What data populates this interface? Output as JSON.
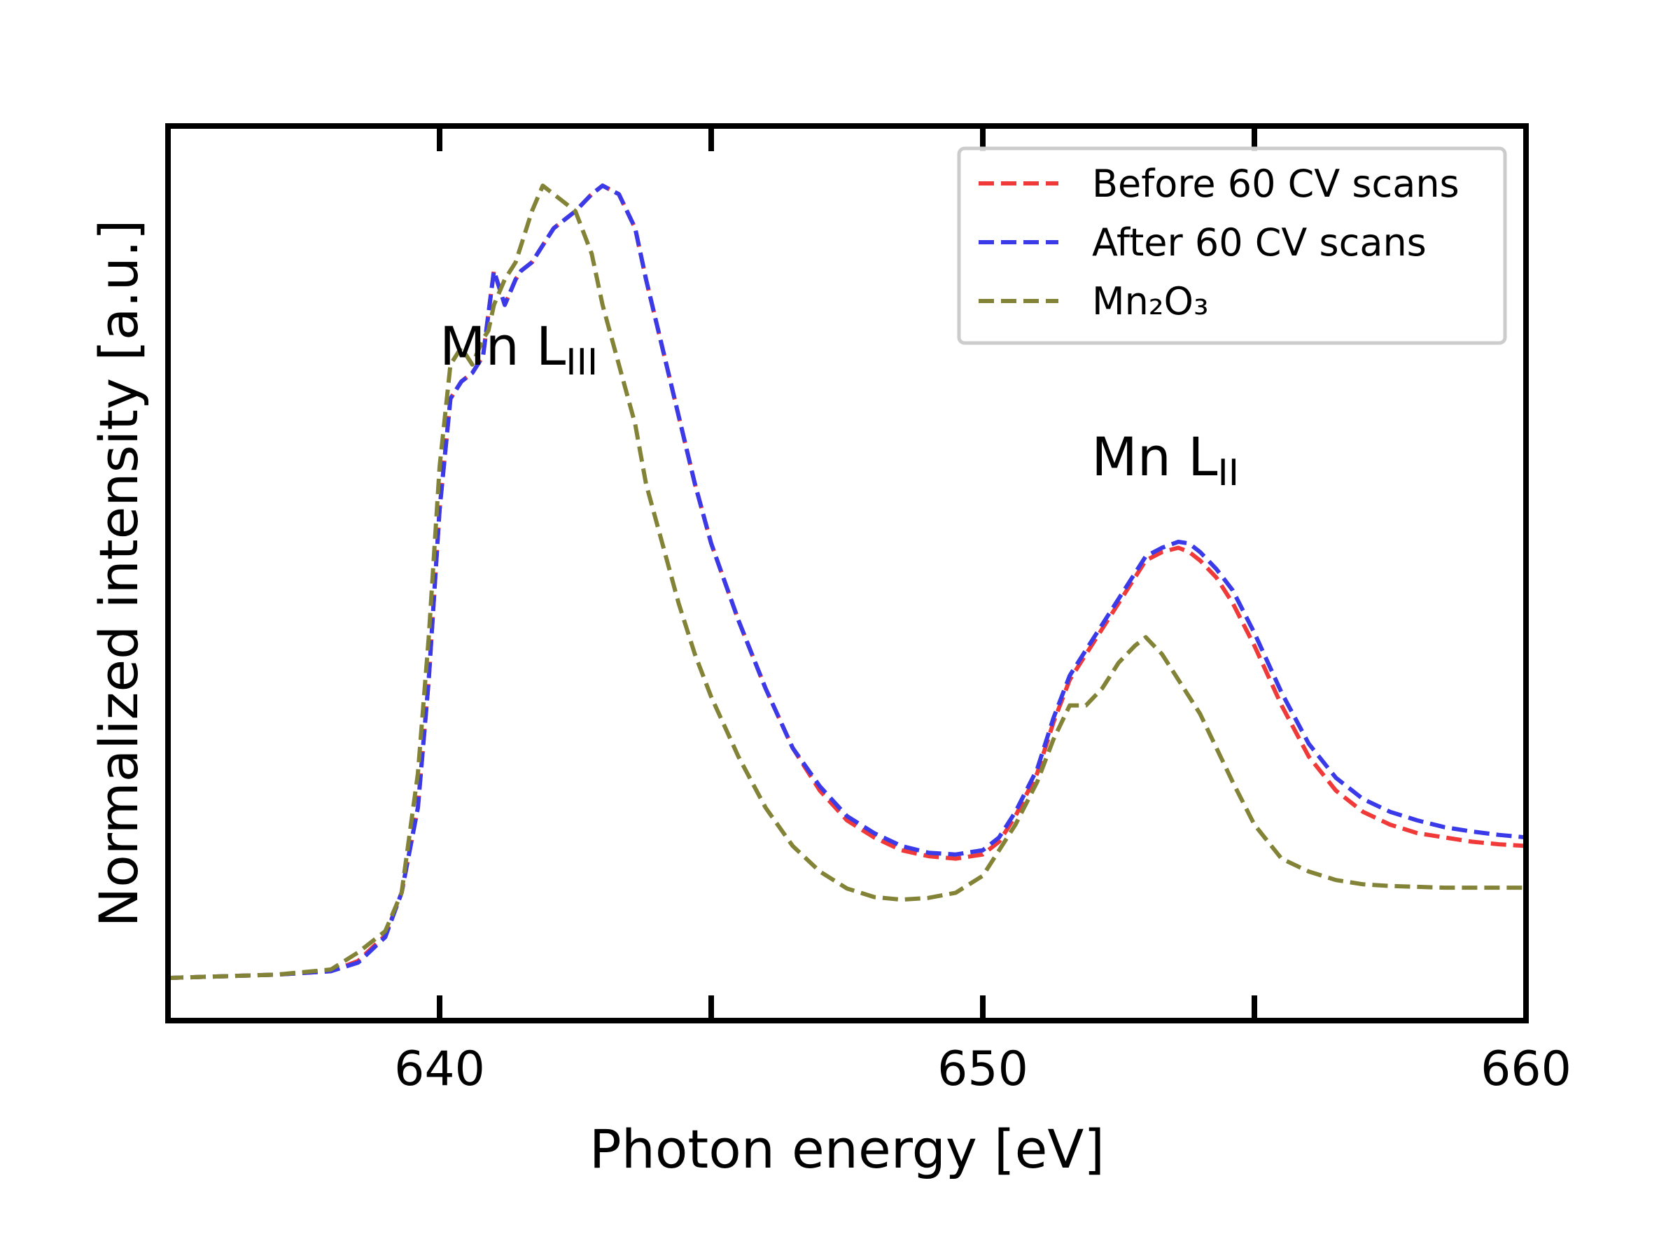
{
  "chart_data": {
    "type": "line",
    "title": "",
    "xlabel": "Photon energy [eV]",
    "ylabel": "Normalized intensity [a.u.]",
    "xlim": [
      635,
      660
    ],
    "ylim": [
      -0.05,
      1.0
    ],
    "xticks": [
      640,
      650,
      660
    ],
    "xtick_labels": [
      "640",
      "650",
      "660"
    ],
    "minor_xticks": [
      645,
      655
    ],
    "grid": false,
    "legend_position": "top-right",
    "annotations": [
      {
        "name": "mn-l3",
        "base": "Mn L",
        "sub": "III",
        "x": 640.0,
        "y": 0.72
      },
      {
        "name": "mn-l2",
        "base": "Mn L",
        "sub": "II",
        "x": 652.0,
        "y": 0.59
      }
    ],
    "series": [
      {
        "name": "Before 60 CV scans",
        "color": "#f03a3a",
        "dash": "dashed",
        "x": [
          635,
          636,
          637,
          638,
          638.5,
          639,
          639.3,
          639.6,
          639.8,
          640.0,
          640.2,
          640.4,
          640.6,
          640.8,
          640.9,
          641.0,
          641.2,
          641.4,
          641.5,
          641.7,
          641.9,
          642.1,
          642.3,
          642.5,
          642.8,
          643.0,
          643.3,
          643.6,
          643.8,
          644.1,
          644.4,
          644.7,
          645.0,
          645.5,
          646.0,
          646.5,
          647.0,
          647.5,
          648.0,
          648.5,
          649.0,
          649.5,
          650.0,
          650.3,
          650.6,
          651.0,
          651.3,
          651.6,
          651.9,
          652.2,
          652.5,
          652.8,
          653.0,
          653.3,
          653.6,
          653.8,
          654.0,
          654.3,
          654.6,
          655.0,
          655.5,
          656.0,
          656.5,
          657.0,
          657.5,
          658.0,
          658.5,
          659.0,
          659.5,
          660.0
        ],
        "y": [
          0.0,
          0.002,
          0.004,
          0.008,
          0.02,
          0.05,
          0.1,
          0.2,
          0.35,
          0.55,
          0.68,
          0.7,
          0.71,
          0.73,
          0.78,
          0.83,
          0.79,
          0.82,
          0.83,
          0.84,
          0.86,
          0.88,
          0.89,
          0.9,
          0.92,
          0.93,
          0.92,
          0.88,
          0.82,
          0.74,
          0.66,
          0.58,
          0.51,
          0.42,
          0.34,
          0.27,
          0.22,
          0.185,
          0.165,
          0.15,
          0.143,
          0.14,
          0.145,
          0.16,
          0.19,
          0.24,
          0.3,
          0.35,
          0.38,
          0.41,
          0.44,
          0.47,
          0.49,
          0.5,
          0.505,
          0.5,
          0.49,
          0.47,
          0.44,
          0.39,
          0.32,
          0.26,
          0.22,
          0.195,
          0.18,
          0.17,
          0.165,
          0.16,
          0.157,
          0.155
        ]
      },
      {
        "name": "After 60 CV scans",
        "color": "#3a3ae8",
        "dash": "dashed",
        "x": [
          635,
          636,
          637,
          638,
          638.5,
          639,
          639.3,
          639.6,
          639.8,
          640.0,
          640.2,
          640.4,
          640.6,
          640.8,
          640.9,
          641.0,
          641.2,
          641.4,
          641.5,
          641.7,
          641.9,
          642.1,
          642.3,
          642.5,
          642.8,
          643.0,
          643.3,
          643.6,
          643.8,
          644.1,
          644.4,
          644.7,
          645.0,
          645.5,
          646.0,
          646.5,
          647.0,
          647.5,
          648.0,
          648.5,
          649.0,
          649.5,
          650.0,
          650.3,
          650.6,
          651.0,
          651.3,
          651.6,
          651.9,
          652.2,
          652.5,
          652.8,
          653.0,
          653.3,
          653.6,
          653.8,
          654.0,
          654.3,
          654.6,
          655.0,
          655.5,
          656.0,
          656.5,
          657.0,
          657.5,
          658.0,
          658.5,
          659.0,
          659.5,
          660.0
        ],
        "y": [
          0.0,
          0.002,
          0.004,
          0.008,
          0.018,
          0.048,
          0.1,
          0.2,
          0.35,
          0.55,
          0.68,
          0.7,
          0.71,
          0.73,
          0.78,
          0.83,
          0.79,
          0.82,
          0.83,
          0.84,
          0.86,
          0.88,
          0.89,
          0.9,
          0.92,
          0.93,
          0.92,
          0.88,
          0.82,
          0.74,
          0.66,
          0.58,
          0.51,
          0.42,
          0.34,
          0.27,
          0.225,
          0.19,
          0.17,
          0.155,
          0.147,
          0.145,
          0.15,
          0.165,
          0.195,
          0.245,
          0.305,
          0.355,
          0.385,
          0.415,
          0.445,
          0.475,
          0.495,
          0.505,
          0.512,
          0.51,
          0.5,
          0.48,
          0.455,
          0.405,
          0.335,
          0.275,
          0.235,
          0.21,
          0.195,
          0.185,
          0.177,
          0.172,
          0.168,
          0.165
        ]
      },
      {
        "name": "Mn₂O₃",
        "color": "#838337",
        "dash": "dashed",
        "x": [
          635,
          636,
          637,
          638,
          638.5,
          639,
          639.3,
          639.6,
          639.8,
          640.0,
          640.2,
          640.4,
          640.6,
          640.8,
          640.9,
          641.0,
          641.2,
          641.4,
          641.5,
          641.7,
          641.9,
          642.1,
          642.3,
          642.5,
          642.8,
          643.0,
          643.3,
          643.6,
          643.8,
          644.1,
          644.4,
          644.7,
          645.0,
          645.5,
          646.0,
          646.5,
          647.0,
          647.5,
          648.0,
          648.5,
          649.0,
          649.5,
          650.0,
          650.3,
          650.6,
          651.0,
          651.3,
          651.6,
          651.9,
          652.2,
          652.5,
          652.8,
          653.0,
          653.3,
          653.6,
          653.8,
          654.0,
          654.3,
          654.6,
          655.0,
          655.5,
          656.0,
          656.5,
          657.0,
          657.5,
          658.0,
          658.5,
          659.0,
          659.5,
          660.0
        ],
        "y": [
          0.0,
          0.002,
          0.004,
          0.01,
          0.03,
          0.055,
          0.1,
          0.24,
          0.4,
          0.6,
          0.72,
          0.74,
          0.72,
          0.75,
          0.76,
          0.79,
          0.82,
          0.84,
          0.86,
          0.9,
          0.93,
          0.92,
          0.91,
          0.9,
          0.85,
          0.79,
          0.72,
          0.65,
          0.58,
          0.51,
          0.44,
          0.38,
          0.33,
          0.26,
          0.2,
          0.155,
          0.125,
          0.105,
          0.095,
          0.092,
          0.094,
          0.1,
          0.12,
          0.15,
          0.18,
          0.23,
          0.28,
          0.32,
          0.32,
          0.34,
          0.37,
          0.39,
          0.4,
          0.38,
          0.35,
          0.33,
          0.31,
          0.27,
          0.23,
          0.18,
          0.14,
          0.125,
          0.115,
          0.11,
          0.108,
          0.107,
          0.106,
          0.106,
          0.106,
          0.106
        ]
      }
    ]
  }
}
